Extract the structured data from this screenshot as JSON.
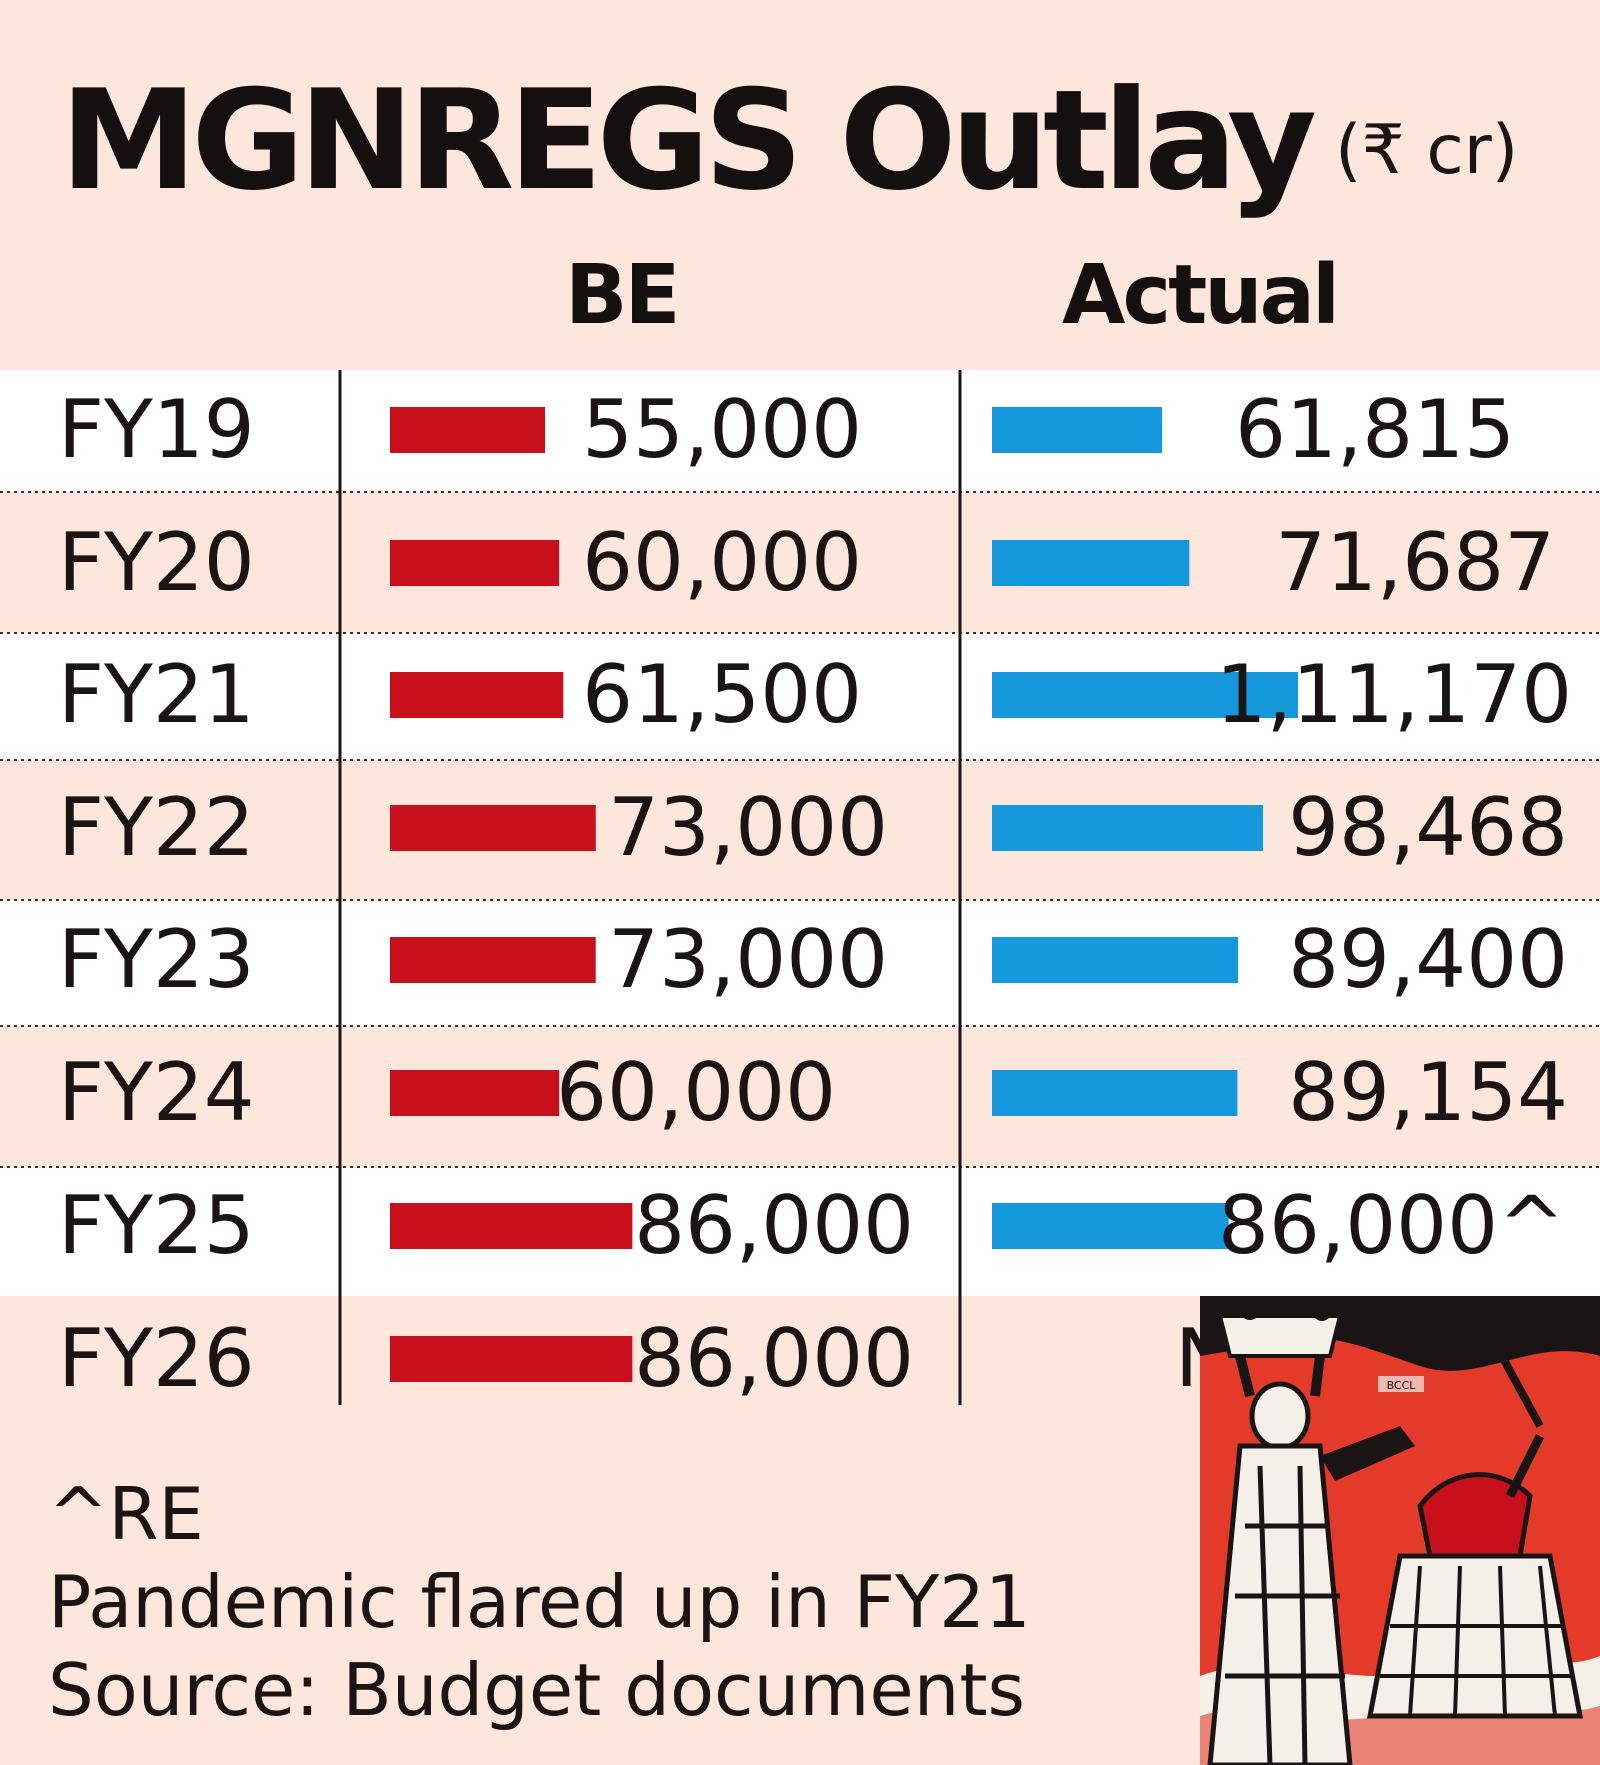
{
  "title": "MGNREGS Outlay",
  "unit": "(₹ cr)",
  "chart_data": {
    "type": "bar",
    "title": "MGNREGS Outlay",
    "subtitle": "(₹ cr)",
    "categories": [
      "FY19",
      "FY20",
      "FY21",
      "FY22",
      "FY23",
      "FY24",
      "FY25",
      "FY26"
    ],
    "series": [
      {
        "name": "BE",
        "color": "#c8101c",
        "values": [
          55000,
          60000,
          61500,
          73000,
          73000,
          60000,
          86000,
          86000
        ],
        "labels": [
          "55,000",
          "60,000",
          "61,500",
          "73,000",
          "73,000",
          "60,000",
          "86,000",
          "86,000"
        ]
      },
      {
        "name": "Actual",
        "color": "#1598dc",
        "values": [
          61815,
          71687,
          111170,
          98468,
          89400,
          89154,
          86000,
          null
        ],
        "labels": [
          "61,815",
          "71,687",
          "1,11,170",
          "98,468",
          "89,400",
          "89,154",
          "86,000^",
          "NA"
        ]
      }
    ]
  },
  "notes": {
    "re": "^RE",
    "pandemic": "Pandemic flared up in FY21",
    "source": "Source: Budget documents"
  },
  "illustration": {
    "icon": "mgnregs-workers-illustration",
    "watermark": "BCCL",
    "colors": {
      "red": "#e33a2a",
      "black": "#1a1414",
      "white": "#f4efe8"
    }
  }
}
